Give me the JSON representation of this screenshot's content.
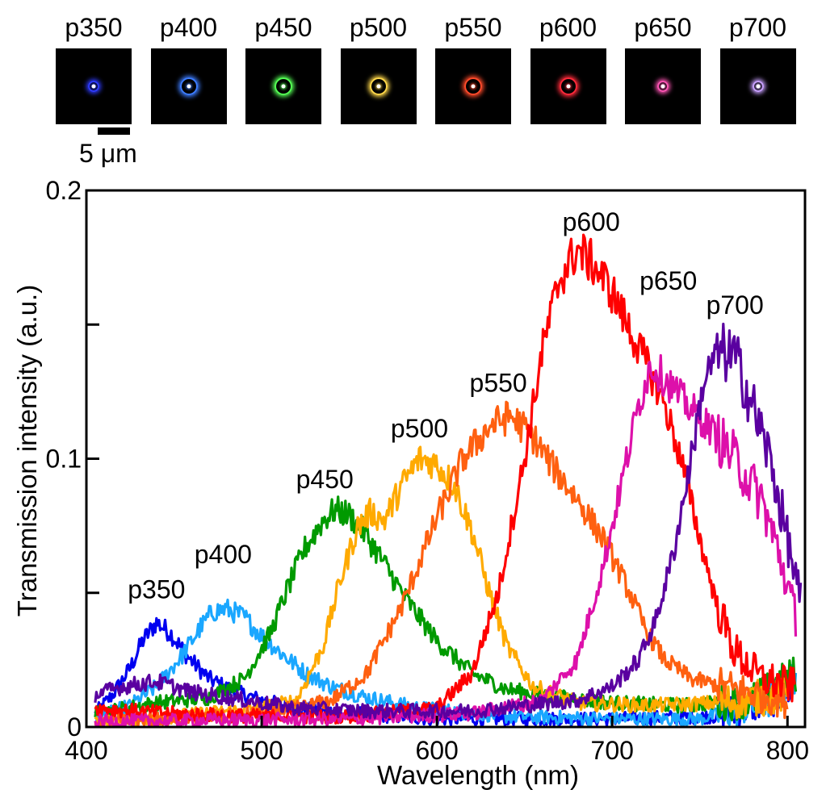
{
  "spot_images": {
    "scale_label": "5 μm",
    "items": [
      {
        "label": "p350",
        "color": "#2f3cff"
      },
      {
        "label": "p400",
        "color": "#3d7dff"
      },
      {
        "label": "p450",
        "color": "#55ff55"
      },
      {
        "label": "p500",
        "color": "#ffd84a"
      },
      {
        "label": "p550",
        "color": "#ff4a2a"
      },
      {
        "label": "p600",
        "color": "#ff2a3a"
      },
      {
        "label": "p650",
        "color": "#ff55b5"
      },
      {
        "label": "p700",
        "color": "#c8a0ff"
      }
    ]
  },
  "chart_data": {
    "type": "line",
    "title": "",
    "xlabel": "Wavelength (nm)",
    "ylabel": "Transmission intensity (a.u.)",
    "xlim": [
      400,
      810
    ],
    "ylim": [
      0,
      0.2
    ],
    "x_ticks": [
      400,
      500,
      600,
      700,
      800
    ],
    "x_tick_labels": [
      "400",
      "500",
      "600",
      "700",
      "800"
    ],
    "y_ticks": [
      0,
      0.05,
      0.1,
      0.15,
      0.2
    ],
    "y_tick_labels": [
      "0",
      "",
      "0.1",
      "",
      "0.2"
    ],
    "grid": false,
    "legend": "none",
    "series": [
      {
        "name": "p350",
        "color": "#0000f0",
        "label_at": [
          440,
          0.048
        ],
        "points": [
          [
            405,
            0.005
          ],
          [
            415,
            0.012
          ],
          [
            425,
            0.022
          ],
          [
            432,
            0.032
          ],
          [
            440,
            0.039
          ],
          [
            448,
            0.035
          ],
          [
            458,
            0.026
          ],
          [
            470,
            0.018
          ],
          [
            485,
            0.013
          ],
          [
            500,
            0.01
          ],
          [
            520,
            0.007
          ],
          [
            550,
            0.005
          ],
          [
            600,
            0.003
          ],
          [
            700,
            0.003
          ],
          [
            760,
            0.004
          ],
          [
            790,
            0.01
          ],
          [
            805,
            0.015
          ]
        ]
      },
      {
        "name": "p400",
        "color": "#1aa7ff",
        "label_at": [
          478,
          0.061
        ],
        "points": [
          [
            405,
            0.003
          ],
          [
            425,
            0.008
          ],
          [
            440,
            0.015
          ],
          [
            455,
            0.027
          ],
          [
            465,
            0.037
          ],
          [
            472,
            0.043
          ],
          [
            480,
            0.044
          ],
          [
            490,
            0.041
          ],
          [
            500,
            0.034
          ],
          [
            512,
            0.027
          ],
          [
            525,
            0.02
          ],
          [
            540,
            0.015
          ],
          [
            560,
            0.011
          ],
          [
            590,
            0.007
          ],
          [
            640,
            0.004
          ],
          [
            700,
            0.003
          ],
          [
            750,
            0.003
          ],
          [
            790,
            0.01
          ],
          [
            805,
            0.02
          ]
        ]
      },
      {
        "name": "p450",
        "color": "#009a00",
        "label_at": [
          536,
          0.089
        ],
        "points": [
          [
            405,
            0.005
          ],
          [
            440,
            0.009
          ],
          [
            470,
            0.011
          ],
          [
            490,
            0.018
          ],
          [
            505,
            0.035
          ],
          [
            515,
            0.052
          ],
          [
            525,
            0.067
          ],
          [
            535,
            0.077
          ],
          [
            542,
            0.081
          ],
          [
            550,
            0.079
          ],
          [
            558,
            0.073
          ],
          [
            568,
            0.063
          ],
          [
            582,
            0.048
          ],
          [
            600,
            0.032
          ],
          [
            620,
            0.02
          ],
          [
            640,
            0.014
          ],
          [
            670,
            0.011
          ],
          [
            700,
            0.009
          ],
          [
            740,
            0.008
          ],
          [
            780,
            0.01
          ],
          [
            805,
            0.02
          ]
        ]
      },
      {
        "name": "p500",
        "color": "#ffaa00",
        "label_at": [
          590,
          0.108
        ],
        "points": [
          [
            405,
            0.002
          ],
          [
            450,
            0.004
          ],
          [
            500,
            0.007
          ],
          [
            520,
            0.01
          ],
          [
            535,
            0.03
          ],
          [
            545,
            0.055
          ],
          [
            555,
            0.075
          ],
          [
            562,
            0.08
          ],
          [
            570,
            0.077
          ],
          [
            580,
            0.09
          ],
          [
            590,
            0.1
          ],
          [
            600,
            0.098
          ],
          [
            610,
            0.09
          ],
          [
            620,
            0.073
          ],
          [
            630,
            0.05
          ],
          [
            640,
            0.03
          ],
          [
            655,
            0.015
          ],
          [
            680,
            0.009
          ],
          [
            720,
            0.008
          ],
          [
            760,
            0.009
          ],
          [
            800,
            0.012
          ]
        ]
      },
      {
        "name": "p550",
        "color": "#ff6010",
        "label_at": [
          635,
          0.125
        ],
        "points": [
          [
            405,
            0.002
          ],
          [
            480,
            0.004
          ],
          [
            520,
            0.007
          ],
          [
            540,
            0.01
          ],
          [
            560,
            0.02
          ],
          [
            580,
            0.045
          ],
          [
            600,
            0.078
          ],
          [
            615,
            0.1
          ],
          [
            630,
            0.112
          ],
          [
            642,
            0.116
          ],
          [
            655,
            0.108
          ],
          [
            665,
            0.098
          ],
          [
            680,
            0.085
          ],
          [
            695,
            0.07
          ],
          [
            710,
            0.05
          ],
          [
            720,
            0.035
          ],
          [
            730,
            0.025
          ],
          [
            745,
            0.018
          ],
          [
            770,
            0.014
          ],
          [
            800,
            0.01
          ]
        ]
      },
      {
        "name": "p600",
        "color": "#ff0000",
        "label_at": [
          688,
          0.185
        ],
        "points": [
          [
            405,
            0.007
          ],
          [
            450,
            0.005
          ],
          [
            500,
            0.004
          ],
          [
            550,
            0.004
          ],
          [
            600,
            0.007
          ],
          [
            620,
            0.02
          ],
          [
            635,
            0.05
          ],
          [
            650,
            0.1
          ],
          [
            660,
            0.14
          ],
          [
            670,
            0.167
          ],
          [
            680,
            0.178
          ],
          [
            690,
            0.172
          ],
          [
            700,
            0.162
          ],
          [
            710,
            0.148
          ],
          [
            720,
            0.135
          ],
          [
            730,
            0.12
          ],
          [
            740,
            0.098
          ],
          [
            750,
            0.07
          ],
          [
            760,
            0.045
          ],
          [
            770,
            0.028
          ],
          [
            785,
            0.018
          ],
          [
            805,
            0.015
          ]
        ]
      },
      {
        "name": "p650",
        "color": "#dd10aa",
        "label_at": [
          732,
          0.163
        ],
        "points": [
          [
            405,
            0.002
          ],
          [
            550,
            0.003
          ],
          [
            620,
            0.005
          ],
          [
            660,
            0.01
          ],
          [
            680,
            0.025
          ],
          [
            695,
            0.06
          ],
          [
            705,
            0.09
          ],
          [
            715,
            0.12
          ],
          [
            722,
            0.135
          ],
          [
            730,
            0.13
          ],
          [
            740,
            0.122
          ],
          [
            755,
            0.112
          ],
          [
            770,
            0.1
          ],
          [
            785,
            0.085
          ],
          [
            795,
            0.065
          ],
          [
            805,
            0.04
          ]
        ]
      },
      {
        "name": "p700",
        "color": "#5a00a0",
        "label_at": [
          770,
          0.154
        ],
        "points": [
          [
            405,
            0.012
          ],
          [
            420,
            0.015
          ],
          [
            440,
            0.017
          ],
          [
            460,
            0.013
          ],
          [
            490,
            0.01
          ],
          [
            520,
            0.007
          ],
          [
            560,
            0.006
          ],
          [
            620,
            0.006
          ],
          [
            680,
            0.01
          ],
          [
            700,
            0.015
          ],
          [
            715,
            0.025
          ],
          [
            725,
            0.04
          ],
          [
            735,
            0.065
          ],
          [
            745,
            0.1
          ],
          [
            752,
            0.128
          ],
          [
            760,
            0.14
          ],
          [
            770,
            0.138
          ],
          [
            780,
            0.12
          ],
          [
            790,
            0.1
          ],
          [
            800,
            0.07
          ],
          [
            808,
            0.045
          ]
        ]
      }
    ]
  }
}
